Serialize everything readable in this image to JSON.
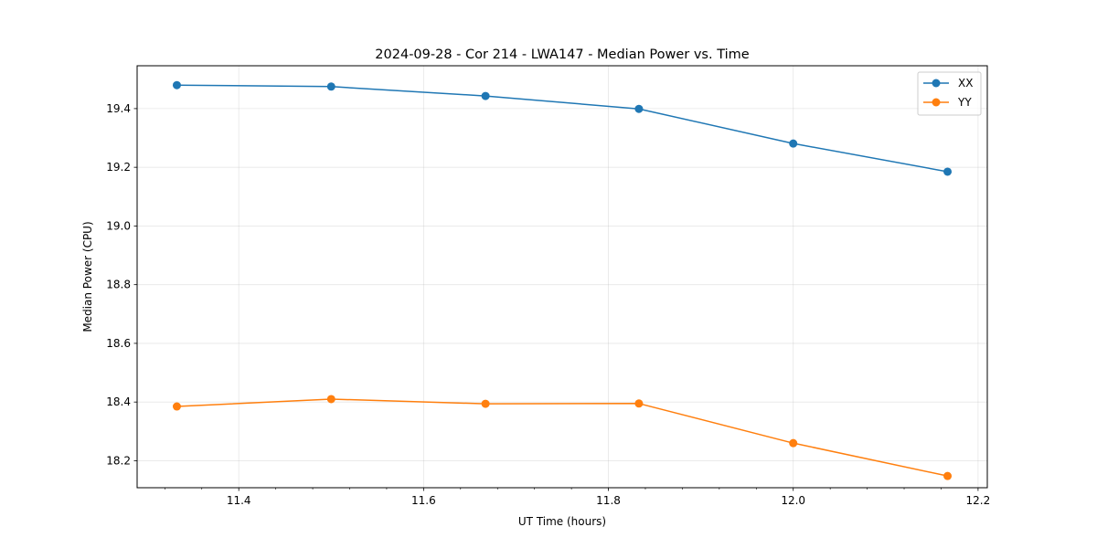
{
  "chart_data": {
    "type": "line",
    "title": "2024-09-28 - Cor 214 - LWA147 - Median Power vs. Time",
    "xlabel": "UT Time (hours)",
    "ylabel": "Median Power (CPU)",
    "xlim": [
      11.29,
      12.21
    ],
    "ylim": [
      18.108,
      19.546
    ],
    "grid": true,
    "legend_position": "top-right",
    "x": [
      11.333,
      11.5,
      11.667,
      11.833,
      12.0,
      12.167
    ],
    "xticks": [
      11.4,
      11.6,
      11.8,
      12.0,
      12.2
    ],
    "xtick_labels": [
      "11.4",
      "11.6",
      "11.8",
      "12.0",
      "12.2"
    ],
    "yticks": [
      18.2,
      18.4,
      18.6,
      18.8,
      19.0,
      19.2,
      19.4
    ],
    "ytick_labels": [
      "18.2",
      "18.4",
      "18.6",
      "18.8",
      "19.0",
      "19.2",
      "19.4"
    ],
    "series": [
      {
        "name": "XX",
        "color": "#1f77b4",
        "values": [
          19.48,
          19.475,
          19.443,
          19.399,
          19.281,
          19.185
        ]
      },
      {
        "name": "YY",
        "color": "#ff7f0e",
        "values": [
          18.385,
          18.41,
          18.394,
          18.395,
          18.26,
          18.148
        ]
      }
    ]
  }
}
